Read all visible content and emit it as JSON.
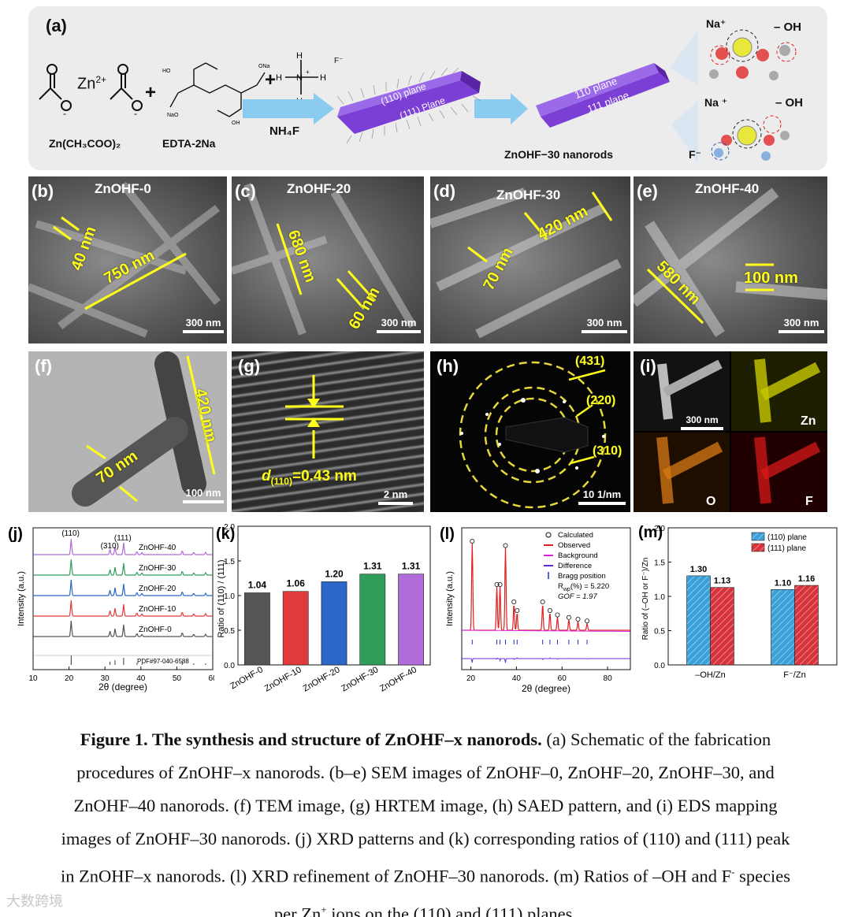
{
  "panel_a": {
    "label": "(a)",
    "zn": "Zn",
    "zn_charge": "2+",
    "plus1": "+",
    "plus2": "+",
    "zn_acetate": "Zn(CH₃COO)₂",
    "edta": "EDTA-2Na",
    "nh4f_label": "NH₄F",
    "f_ion": "F⁻",
    "plane_110": "(110) plane",
    "plane_111": "(111) Plane",
    "plane_110b": "110 plane",
    "plane_111b": "111 plane",
    "nanorod_label": "ZnOHF−30 nanorods",
    "na_plus": "Na⁺",
    "oh_minus": "– OH",
    "na_plus2": "Na ⁺",
    "oh_minus2": "– OH",
    "f_minus": "F⁻"
  },
  "sem": [
    {
      "label": "(b)",
      "title": "ZnOHF-0",
      "m1": "40 nm",
      "m2": "750 nm",
      "scale": "300 nm"
    },
    {
      "label": "(c)",
      "title": "ZnOHF-20",
      "m1": "680 nm",
      "m2": "60 nm",
      "scale": "300 nm"
    },
    {
      "label": "(d)",
      "title": "ZnOHF-30",
      "m1": "420 nm",
      "m2": "70 nm",
      "scale": "300 nm"
    },
    {
      "label": "(e)",
      "title": "ZnOHF-40",
      "m1": "580 nm",
      "m2": "100 nm",
      "scale": "300 nm"
    }
  ],
  "tem": {
    "label": "(f)",
    "m1": "420 nm",
    "m2": "70 nm",
    "scale": "100 nm"
  },
  "hrtem": {
    "label": "(g)",
    "d_label": "d",
    "d_sub": "(110)",
    "d_value": "=0.43 nm",
    "scale": "2 nm"
  },
  "saed": {
    "label": "(h)",
    "r1": "(431)",
    "r2": "(220)",
    "r3": "(310)",
    "scale": "10 1/nm"
  },
  "eds": {
    "label": "(i)",
    "scale": "300 nm",
    "zn": "Zn",
    "o": "O",
    "f": "F"
  },
  "chart_data": [
    {
      "panel": "(j)",
      "type": "line",
      "xlabel": "2θ (degree)",
      "ylabel": "Intensity (a.u.)",
      "xlim": [
        10,
        60
      ],
      "xticks": [
        "10",
        "20",
        "30",
        "40",
        "50",
        "60"
      ],
      "series_labels": [
        "ZnOHF-40",
        "ZnOHF-30",
        "ZnOHF-20",
        "ZnOHF-10",
        "ZnOHF-0"
      ],
      "reference": "PDF#97-040-6588",
      "peak_labels": [
        "(110)",
        "(310)",
        "(111)"
      ],
      "peaks": [
        {
          "x": 20.6,
          "h": 1.0
        },
        {
          "x": 31.4,
          "h": 0.35
        },
        {
          "x": 32.8,
          "h": 0.5
        },
        {
          "x": 35.2,
          "h": 0.75
        },
        {
          "x": 38.9,
          "h": 0.2
        },
        {
          "x": 40.3,
          "h": 0.15
        },
        {
          "x": 51.5,
          "h": 0.25
        },
        {
          "x": 54.7,
          "h": 0.15
        },
        {
          "x": 58.0,
          "h": 0.15
        }
      ],
      "colors": [
        "#b06cd8",
        "#2e9e5a",
        "#2a67c8",
        "#e03a3a",
        "#555555"
      ]
    },
    {
      "panel": "(k)",
      "type": "bar",
      "categories": [
        "ZnOHF-0",
        "ZnOHF-10",
        "ZnOHF-20",
        "ZnOHF-30",
        "ZnOHF-40"
      ],
      "values": [
        1.04,
        1.06,
        1.2,
        1.31,
        1.31
      ],
      "value_labels": [
        "1.04",
        "1.06",
        "1.20",
        "1.31",
        "1.31"
      ],
      "colors": [
        "#555555",
        "#e03a3a",
        "#2a67c8",
        "#2e9e5a",
        "#b06cd8"
      ],
      "ylabel": "Ratio of (110) / (111)",
      "ylim": [
        0,
        2.0
      ],
      "yticks": [
        "0.0",
        "0.5",
        "1.0",
        "1.5",
        "2.0"
      ]
    },
    {
      "panel": "(l)",
      "type": "line",
      "xlabel": "2θ (degree)",
      "ylabel": "Intensity (a.u.)",
      "xlim": [
        16,
        90
      ],
      "xticks": [
        "20",
        "40",
        "60",
        "80"
      ],
      "legend": [
        "Calculated",
        "Observed",
        "Background",
        "Difference",
        "Bragg position"
      ],
      "rwp": "R",
      "rwp_sub": "wp",
      "rwp_value": "(%) = 5.220",
      "gof": "GOF = 1.97",
      "peaks": [
        {
          "x": 20.6,
          "h": 1.0
        },
        {
          "x": 31.4,
          "h": 0.5
        },
        {
          "x": 32.8,
          "h": 0.5
        },
        {
          "x": 35.2,
          "h": 0.95
        },
        {
          "x": 38.9,
          "h": 0.3
        },
        {
          "x": 40.3,
          "h": 0.2
        },
        {
          "x": 51.5,
          "h": 0.3
        },
        {
          "x": 54.7,
          "h": 0.2
        },
        {
          "x": 58.0,
          "h": 0.15
        },
        {
          "x": 63.0,
          "h": 0.12
        },
        {
          "x": 67.0,
          "h": 0.1
        },
        {
          "x": 71.0,
          "h": 0.08
        }
      ]
    },
    {
      "panel": "(m)",
      "type": "bar",
      "categories": [
        "–OH/Zn",
        "F⁻/Zn"
      ],
      "series": [
        {
          "name": "(110) plane",
          "values": [
            1.3,
            1.1
          ],
          "labels": [
            "1.30",
            "1.10"
          ],
          "color": "#3aa0d8"
        },
        {
          "name": "(111) plane",
          "values": [
            1.13,
            1.16
          ],
          "labels": [
            "1.13",
            "1.16"
          ],
          "color": "#d8323a"
        }
      ],
      "ylabel": "Ratio of (–OH or F⁻)/Zn",
      "ylim": [
        0,
        2.0
      ],
      "yticks": [
        "0.0",
        "0.5",
        "1.0",
        "1.5",
        "2.0"
      ]
    }
  ],
  "caption": {
    "title": "Figure 1. The synthesis and structure of ZnOHF–x nanorods.",
    "line1": " (a) Schematic of the fabrication",
    "line2": "procedures of ZnOHF–x nanorods. (b–e) SEM images of ZnOHF–0, ZnOHF–20, ZnOHF–30, and",
    "line3": "ZnOHF–40 nanorods. (f) TEM image, (g) HRTEM image, (h) SAED pattern, and (i) EDS mapping",
    "line4": "images of ZnOHF–30 nanorods. (j) XRD patterns and (k) corresponding ratios of (110) and (111) peak",
    "line5": "in ZnOHF–x nanorods. (l) XRD refinement of ZnOHF–30 nanorods. (m) Ratios of –OH and F",
    "line5_sup": "-",
    "line5_end": " species",
    "line6": "per Zn",
    "line6_sup": "+",
    "line6_end": " ions on the (110) and (111) planes."
  },
  "watermark": "大数跨境"
}
